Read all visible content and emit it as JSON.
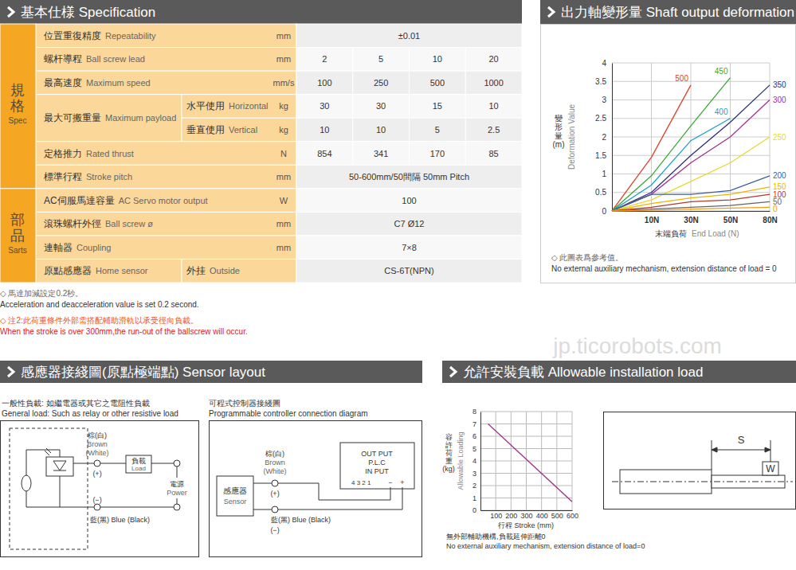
{
  "watermark": "jp.ticorobots.com",
  "spec": {
    "title": "基本仕様 Specification",
    "groups": [
      {
        "label": "規格",
        "label_en": "Spec",
        "rows": [
          {
            "label": "位置重復精度",
            "label_en": "Repeatability",
            "unit": "mm",
            "values": [
              "±0.01"
            ]
          },
          {
            "label": "螺杆導程",
            "label_en": "Ball screw lead",
            "unit": "mm",
            "values": [
              2,
              5,
              10,
              20
            ]
          },
          {
            "label": "最高速度",
            "label_en": "Maximum speed",
            "unit": "mm/s",
            "values": [
              100,
              250,
              500,
              1000
            ]
          },
          {
            "label": "最大可搬重量",
            "label_en": "Maximum payload",
            "sub": [
              {
                "label": "水平使用",
                "label_en": "Horizontal",
                "unit": "kg",
                "values": [
                  30,
                  30,
                  15,
                  10
                ]
              },
              {
                "label": "垂直使用",
                "label_en": "Vertical",
                "unit": "kg",
                "values": [
                  10,
                  10,
                  5,
                  2.5
                ]
              }
            ]
          },
          {
            "label": "定格推力",
            "label_en": "Rated thrust",
            "unit": "N",
            "values": [
              854,
              341,
              170,
              85
            ]
          },
          {
            "label": "標準行程",
            "label_en": "Stroke pitch",
            "unit": "mm",
            "values": [
              "50-600mm/50間隔 50mm Pitch"
            ]
          }
        ]
      },
      {
        "label": "部品",
        "label_en": "Sarts",
        "rows": [
          {
            "label": "AC伺服馬達容量",
            "label_en": "AC Servo motor output",
            "unit": "W",
            "values": [
              100
            ]
          },
          {
            "label": "滾珠螺杆外徑",
            "label_en": "Ball screw ø",
            "unit": "mm",
            "values": [
              "C7 Ø12"
            ]
          },
          {
            "label": "連軸器",
            "label_en": "Coupling",
            "unit": "mm",
            "values": [
              "7×8"
            ]
          },
          {
            "label": "原點感應器",
            "label_en": "Home sensor",
            "sub": [
              {
                "label": "外挂",
                "label_en": "Outside",
                "values": [
                  "CS-6T(NPN)"
                ]
              }
            ]
          }
        ]
      }
    ],
    "notes": [
      "◇ 馬達加減設定0.2秒。",
      "Acceleration and deacceleration value is set 0.2 second.",
      "◇ 注2:此荷重條件外部需搭配輔助滑軌以承受徑向負載。",
      "When the stroke is over 300mm,the run-out of the ballscrew will occur."
    ]
  },
  "sensor": {
    "title": "感應器接綫圖(原點極端點) Sensor layout",
    "general": {
      "title": "一般性負載: 如繼電器或其它之電阻性負載",
      "title_en": "General load: Such as relay or other resistive load",
      "brown": "棕(白)",
      "brown_en": "Brown",
      "white_en": "(White)",
      "plus": "(+)",
      "load": "負載",
      "load_en": "Load",
      "power": "電源",
      "power_en": "Power",
      "minus": "(−)",
      "blue": "藍(黑) Blue (Black)"
    },
    "plc": {
      "title": "可程式控制器接綫圖",
      "title_en": "Programmable controller connection diagram",
      "output": "OUT PUT",
      "plc": "P.L.C",
      "input": "IN PUT",
      "pins": "4 3 2 1",
      "pin_minus": "−",
      "pin_plus": "+",
      "sensor": "感應器",
      "sensor_en": "Sensor",
      "brown": "棕(白)",
      "brown_en": "Brown",
      "white_en": "(White)",
      "plus": "(+)",
      "blue": "藍(黑) Blue (Black)",
      "minus": "(−)"
    }
  },
  "install_diagram": {
    "s": "S",
    "w": "W"
  },
  "chart_data": [
    {
      "type": "line",
      "title": "出力軸變形量 Shaft output deformation value",
      "y_label": "變形量(m)",
      "y_label_en": "Deformation Value",
      "x_label": "末端負荷",
      "x_label_en": "End Load (N)",
      "categories": [
        null,
        "10N",
        "30N",
        "50N",
        "80N"
      ],
      "ylim": [
        0,
        4
      ],
      "yticks": [
        0,
        0.5,
        1,
        1.5,
        2,
        2.5,
        3,
        3.5,
        4
      ],
      "grid": true,
      "notes": [
        "◇ 此圖表爲參考值。",
        "No external auxiliary mechanism, extension distance of load = 0"
      ],
      "series": [
        {
          "name": "500",
          "color": "#e2402a",
          "values": [
            0,
            1.45,
            3.4,
            null,
            null
          ]
        },
        {
          "name": "450",
          "color": "#3aaa35",
          "values": [
            0,
            0.95,
            2.3,
            3.6,
            null
          ]
        },
        {
          "name": "400",
          "color": "#1aa0c8",
          "values": [
            0,
            0.7,
            1.9,
            2.5,
            null
          ]
        },
        {
          "name": "350",
          "color": "#2b2f7c",
          "values": [
            0,
            0.5,
            1.5,
            2.4,
            3.4
          ]
        },
        {
          "name": "300",
          "color": "#a0338f",
          "values": [
            0,
            0.45,
            1.3,
            2.0,
            3.0
          ]
        },
        {
          "name": "250",
          "color": "#e8d830",
          "values": [
            0,
            0.3,
            0.8,
            1.3,
            2.0
          ]
        },
        {
          "name": "200",
          "color": "#3a5f9f",
          "values": [
            0,
            0.45,
            0.45,
            0.55,
            0.95
          ]
        },
        {
          "name": "150",
          "color": "#f0b400",
          "values": [
            0,
            0.2,
            0.35,
            0.45,
            0.65
          ]
        },
        {
          "name": "100",
          "color": "#b03a2e",
          "values": [
            0,
            0.1,
            0.25,
            0.3,
            0.45
          ]
        },
        {
          "name": "50",
          "color": "#666666",
          "values": [
            0,
            0.05,
            0.1,
            0.15,
            0.25
          ]
        },
        {
          "name": "0",
          "color": "#f39c12",
          "values": [
            0,
            0.02,
            0.05,
            0.08,
            0.1
          ]
        }
      ]
    },
    {
      "type": "line",
      "title": "允許安裝負載 Allowable installation load",
      "y_label": "容許荷重(kg)",
      "y_label_en": "Allowable Loading",
      "x_label": "行程 Stroke (mm)",
      "x": [
        50,
        600
      ],
      "xlim": [
        0,
        600
      ],
      "xticks": [
        100,
        200,
        300,
        400,
        500,
        600
      ],
      "ylim": [
        0,
        8
      ],
      "yticks": [
        0,
        1,
        2,
        3,
        4,
        5,
        6,
        7,
        8
      ],
      "grid": true,
      "notes": [
        "無外部輔助機構,負載延伸距離0",
        "No external auxiliary mechanism, extension distance of load=0"
      ],
      "series": [
        {
          "color": "#a0338f",
          "values": [
            7,
            0.7
          ]
        }
      ]
    }
  ]
}
